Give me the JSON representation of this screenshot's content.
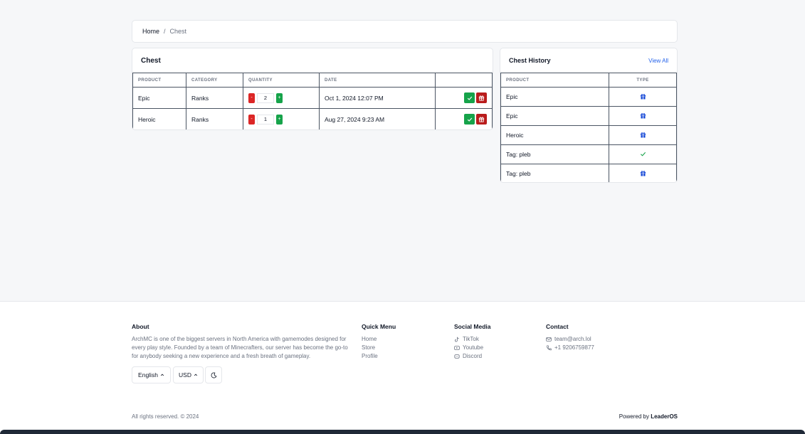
{
  "breadcrumb": {
    "home": "Home",
    "separator": "/",
    "current": "Chest"
  },
  "chest": {
    "title": "Chest",
    "columns": [
      "PRODUCT",
      "CATEGORY",
      "QUANTITY",
      "DATE",
      ""
    ],
    "rows": [
      {
        "product": "Epic",
        "category": "Ranks",
        "quantity": "2",
        "date": "Oct 1, 2024 12:07 PM"
      },
      {
        "product": "Heroic",
        "category": "Ranks",
        "quantity": "1",
        "date": "Aug 27, 2024 9:23 AM"
      }
    ],
    "minus_label": "-",
    "plus_label": "+"
  },
  "history": {
    "title": "Chest History",
    "view_all": "View All",
    "columns": [
      "PRODUCT",
      "TYPE"
    ],
    "rows": [
      {
        "product": "Epic",
        "type_icon": "gift-icon"
      },
      {
        "product": "Epic",
        "type_icon": "gift-icon"
      },
      {
        "product": "Heroic",
        "type_icon": "gift-icon"
      },
      {
        "product": "Tag: pleb",
        "type_icon": "check-icon"
      },
      {
        "product": "Tag: pleb",
        "type_icon": "gift-icon"
      }
    ]
  },
  "footer": {
    "about": {
      "heading": "About",
      "line1": "ArchMC is one of the biggest servers in North America with gamemodes designed for",
      "line2": "every play style. Founded by a team of Minecrafters, our server has become the go-to",
      "line3": "for anybody seeking a new experience and a fresh breath of gameplay."
    },
    "quick_menu": {
      "heading": "Quick Menu",
      "items": [
        "Home",
        "Store",
        "Profile"
      ]
    },
    "social": {
      "heading": "Social Media",
      "items": [
        "TikTok",
        "Youtube",
        "Discord"
      ]
    },
    "contact": {
      "heading": "Contact",
      "email": "team@arch.lol",
      "phone": "+1 9206759877"
    },
    "language": "English",
    "currency": "USD",
    "copyright": "All rights reserved. © 2024",
    "powered_prefix": "Powered by",
    "powered_brand": "LeaderOS"
  },
  "colors": {
    "green": "#16a34a",
    "red": "#dc2626",
    "link": "#2563eb",
    "gift_icon": "#1d4ed8"
  }
}
